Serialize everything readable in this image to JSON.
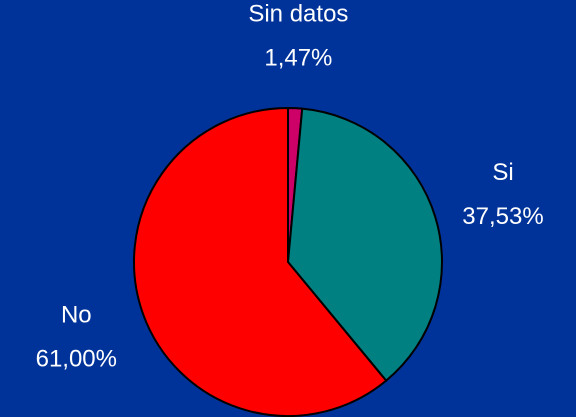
{
  "chart_data": {
    "type": "pie",
    "categories": [
      "Sin datos",
      "Si",
      "No"
    ],
    "values": [
      1.47,
      37.53,
      61.0
    ],
    "value_labels": [
      "1,47%",
      "37,53%",
      "61,00%"
    ],
    "colors": [
      "#cc0066",
      "#008080",
      "#ff0000"
    ]
  }
}
